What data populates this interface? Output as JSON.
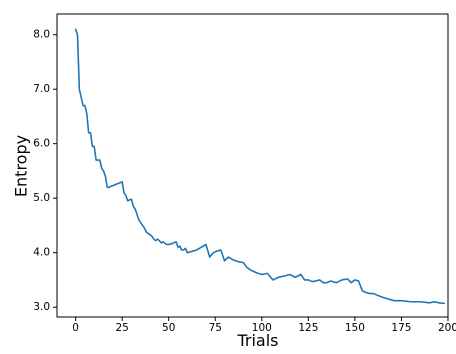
{
  "chart_data": {
    "type": "line",
    "title": "",
    "xlabel": "Trials",
    "ylabel": "Entropy",
    "xlim": [
      -10,
      200
    ],
    "ylim": [
      2.82,
      8.38
    ],
    "xticks": [
      0,
      25,
      50,
      75,
      100,
      125,
      150,
      175,
      200
    ],
    "yticks": [
      3.0,
      4.0,
      5.0,
      6.0,
      7.0,
      8.0
    ],
    "xtick_labels": [
      "0",
      "25",
      "50",
      "75",
      "100",
      "125",
      "150",
      "175",
      "200"
    ],
    "ytick_labels": [
      "3.0",
      "4.0",
      "5.0",
      "6.0",
      "7.0",
      "8.0"
    ],
    "grid": false,
    "line_color": "#1f77b4",
    "series": [
      {
        "x": [
          0,
          1,
          2,
          3,
          4,
          5,
          6,
          7,
          8,
          9,
          10,
          11,
          12,
          13,
          14,
          15,
          16,
          17,
          18,
          19,
          20,
          25,
          26,
          27,
          28,
          29,
          30,
          31,
          32,
          33,
          34,
          35,
          36,
          37,
          38,
          39,
          40,
          41,
          42,
          43,
          44,
          45,
          46,
          47,
          48,
          49,
          50,
          52,
          54,
          55,
          56,
          57,
          58,
          59,
          60,
          65,
          70,
          72,
          74,
          76,
          78,
          80,
          82,
          84,
          86,
          88,
          90,
          92,
          94,
          96,
          98,
          100,
          103,
          106,
          109,
          112,
          115,
          118,
          121,
          123,
          125,
          127,
          129,
          131,
          133,
          135,
          137,
          140,
          143,
          146,
          148,
          150,
          152,
          154,
          156,
          158,
          160,
          162,
          165,
          168,
          171,
          175,
          180,
          185,
          190,
          193,
          195,
          198
        ],
        "y": [
          8.1,
          8.0,
          7.0,
          6.85,
          6.7,
          6.7,
          6.55,
          6.2,
          6.2,
          5.95,
          5.95,
          5.7,
          5.7,
          5.7,
          5.55,
          5.5,
          5.4,
          5.2,
          5.2,
          5.22,
          5.23,
          5.3,
          5.1,
          5.05,
          4.95,
          4.97,
          4.98,
          4.85,
          4.8,
          4.7,
          4.6,
          4.55,
          4.5,
          4.45,
          4.38,
          4.35,
          4.33,
          4.3,
          4.25,
          4.22,
          4.25,
          4.22,
          4.18,
          4.2,
          4.17,
          4.15,
          4.15,
          4.17,
          4.2,
          4.1,
          4.12,
          4.05,
          4.05,
          4.08,
          4.0,
          4.05,
          4.15,
          3.92,
          4.0,
          4.03,
          4.05,
          3.85,
          3.92,
          3.88,
          3.85,
          3.83,
          3.82,
          3.73,
          3.68,
          3.65,
          3.62,
          3.6,
          3.62,
          3.5,
          3.55,
          3.57,
          3.6,
          3.55,
          3.6,
          3.5,
          3.5,
          3.47,
          3.48,
          3.5,
          3.45,
          3.45,
          3.48,
          3.45,
          3.5,
          3.52,
          3.45,
          3.5,
          3.48,
          3.3,
          3.27,
          3.25,
          3.25,
          3.22,
          3.18,
          3.15,
          3.12,
          3.12,
          3.1,
          3.1,
          3.08,
          3.1,
          3.08,
          3.07
        ]
      }
    ]
  }
}
